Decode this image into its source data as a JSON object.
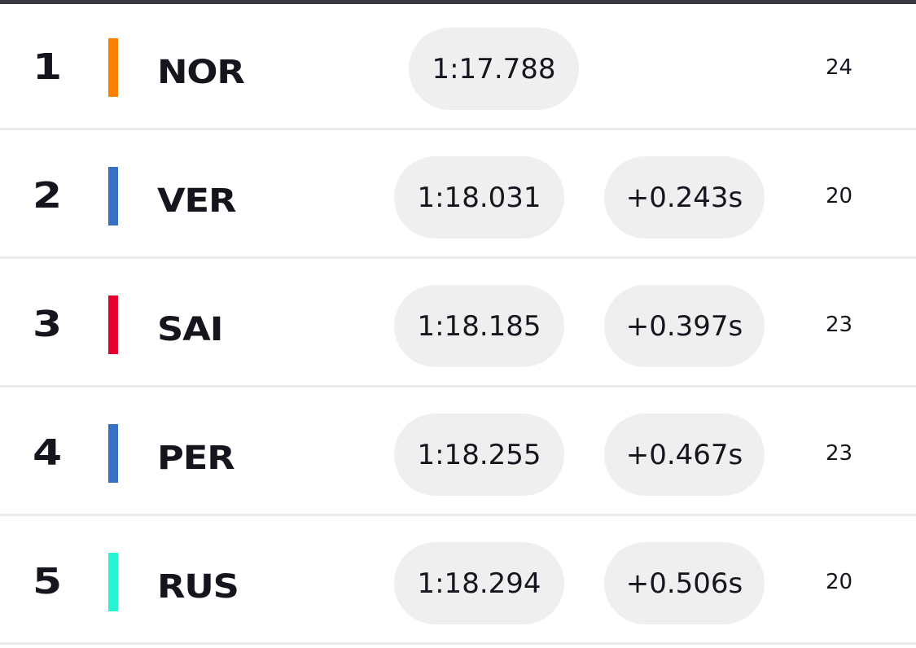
{
  "rows": [
    {
      "position": "1",
      "driver": "NOR",
      "time": "1:17.788",
      "gap": "",
      "laps": "24",
      "team_color": "#ff8000"
    },
    {
      "position": "2",
      "driver": "VER",
      "time": "1:18.031",
      "gap": "+0.243s",
      "laps": "20",
      "team_color": "#3671c6"
    },
    {
      "position": "3",
      "driver": "SAI",
      "time": "1:18.185",
      "gap": "+0.397s",
      "laps": "23",
      "team_color": "#e8002d"
    },
    {
      "position": "4",
      "driver": "PER",
      "time": "1:18.255",
      "gap": "+0.467s",
      "laps": "23",
      "team_color": "#3671c6"
    },
    {
      "position": "5",
      "driver": "RUS",
      "time": "1:18.294",
      "gap": "+0.506s",
      "laps": "20",
      "team_color": "#27f4d2"
    }
  ],
  "colors": {
    "pill_background": "#efefef",
    "text": "#15151e",
    "top_bar": "#38383f",
    "divider": "#ebebeb"
  }
}
